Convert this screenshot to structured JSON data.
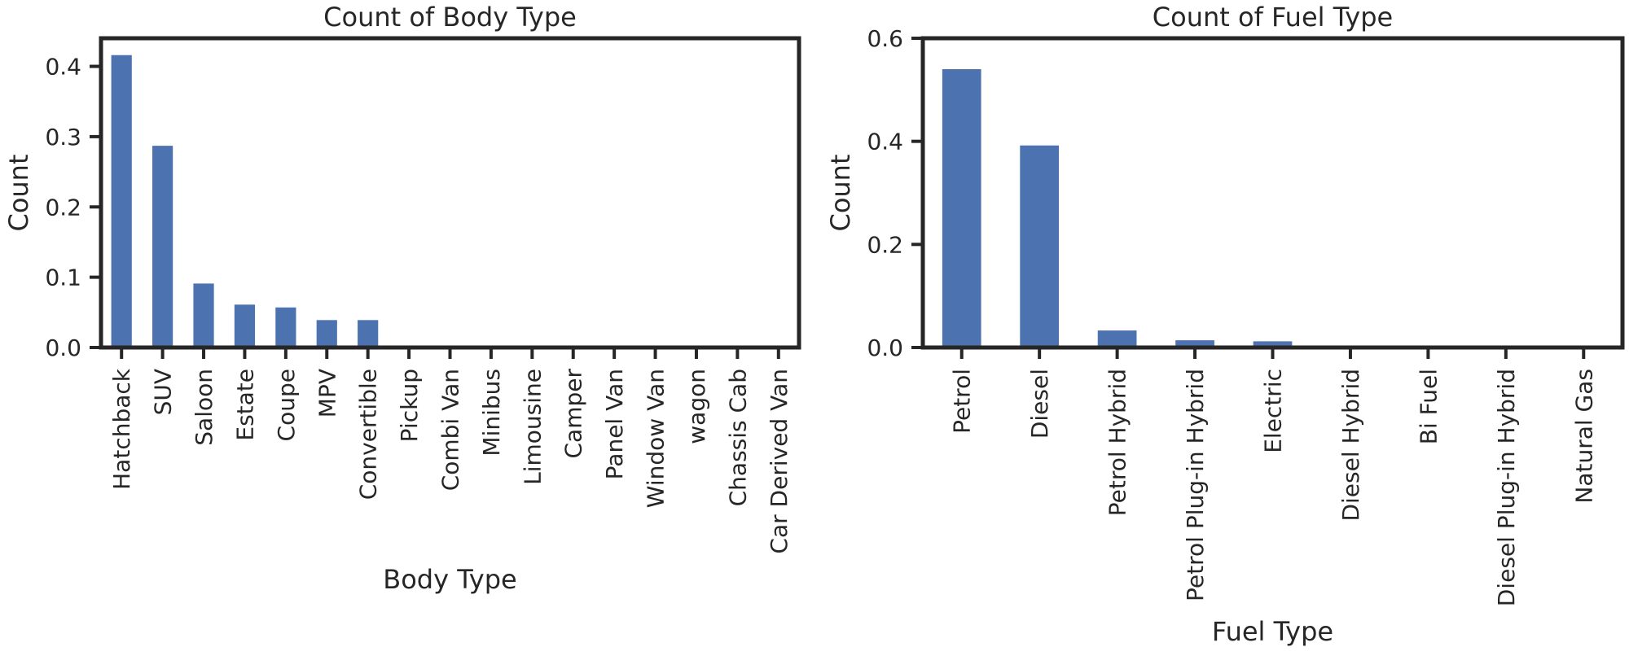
{
  "chart_data": [
    {
      "type": "bar",
      "title": "Count of Body Type",
      "xlabel": "Body Type",
      "ylabel": "Count",
      "ylim": [
        0,
        0.44
      ],
      "yticks": [
        "0.0",
        "0.1",
        "0.2",
        "0.3",
        "0.4"
      ],
      "ytick_values": [
        0,
        0.1,
        0.2,
        0.3,
        0.4
      ],
      "categories": [
        "Hatchback",
        "SUV",
        "Saloon",
        "Estate",
        "Coupe",
        "MPV",
        "Convertible",
        "Pickup",
        "Combi Van",
        "Minibus",
        "Limousine",
        "Camper",
        "Panel Van",
        "Window Van",
        "wagon",
        "Chassis Cab",
        "Car Derived Van"
      ],
      "values": [
        0.416,
        0.287,
        0.091,
        0.061,
        0.057,
        0.039,
        0.039,
        0.001,
        0.0005,
        0.0003,
        0.0002,
        0.0002,
        0.0001,
        0.0001,
        0.0001,
        5e-05,
        5e-05
      ],
      "bar_color": "#4c72b0"
    },
    {
      "type": "bar",
      "title": "Count of Fuel Type",
      "xlabel": "Fuel Type",
      "ylabel": "Count",
      "ylim": [
        0,
        0.6
      ],
      "yticks": [
        "0.0",
        "0.2",
        "0.4",
        "0.6"
      ],
      "ytick_values": [
        0,
        0.2,
        0.4,
        0.6
      ],
      "categories": [
        "Petrol",
        "Diesel",
        "Petrol Hybrid",
        "Petrol Plug-in Hybrid",
        "Electric",
        "Diesel Hybrid",
        "Bi Fuel",
        "Diesel Plug-in Hybrid",
        "Natural Gas"
      ],
      "values": [
        0.54,
        0.392,
        0.033,
        0.014,
        0.012,
        0.002,
        0.001,
        0.0008,
        0.0002
      ],
      "bar_color": "#4c72b0"
    }
  ]
}
